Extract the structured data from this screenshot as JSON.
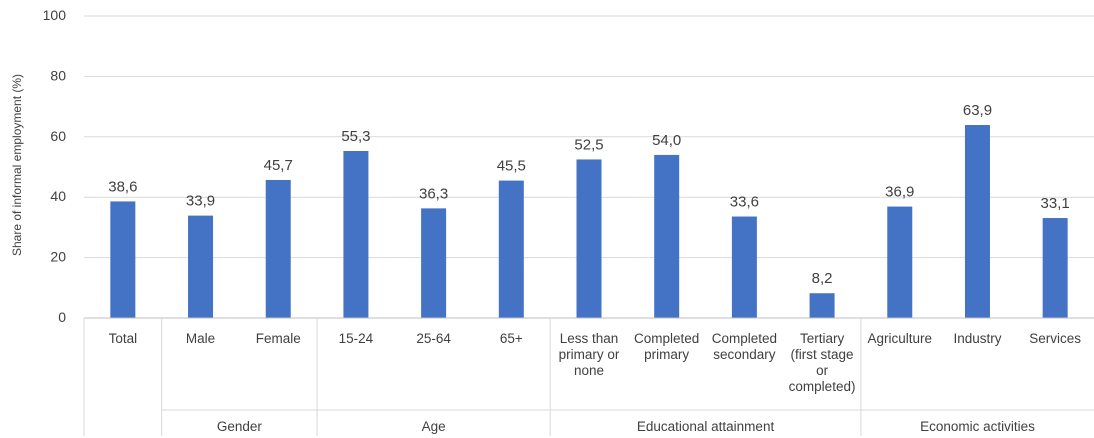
{
  "chart_data": {
    "type": "bar",
    "title": "",
    "ylabel": "Share of informal employment (%)",
    "ylim": [
      0,
      100
    ],
    "yticks": [
      0,
      20,
      40,
      60,
      80,
      100
    ],
    "grid": true,
    "bar_color": "#4472C4",
    "categories": [
      {
        "label": [
          "Total"
        ],
        "value": 38.6,
        "value_label": "38,6",
        "group": ""
      },
      {
        "label": [
          "Male"
        ],
        "value": 33.9,
        "value_label": "33,9",
        "group": "Gender"
      },
      {
        "label": [
          "Female"
        ],
        "value": 45.7,
        "value_label": "45,7",
        "group": "Gender"
      },
      {
        "label": [
          "15-24"
        ],
        "value": 55.3,
        "value_label": "55,3",
        "group": "Age"
      },
      {
        "label": [
          "25-64"
        ],
        "value": 36.3,
        "value_label": "36,3",
        "group": "Age"
      },
      {
        "label": [
          "65+"
        ],
        "value": 45.5,
        "value_label": "45,5",
        "group": "Age"
      },
      {
        "label": [
          "Less than",
          "primary or",
          "none"
        ],
        "value": 52.5,
        "value_label": "52,5",
        "group": "Educational attainment"
      },
      {
        "label": [
          "Completed",
          "primary"
        ],
        "value": 54.0,
        "value_label": "54,0",
        "group": "Educational attainment"
      },
      {
        "label": [
          "Completed",
          "secondary"
        ],
        "value": 33.6,
        "value_label": "33,6",
        "group": "Educational attainment"
      },
      {
        "label": [
          "Tertiary",
          "(first stage",
          "or",
          "completed)"
        ],
        "value": 8.2,
        "value_label": "8,2",
        "group": "Educational attainment"
      },
      {
        "label": [
          "Agriculture"
        ],
        "value": 36.9,
        "value_label": "36,9",
        "group": "Economic activities"
      },
      {
        "label": [
          "Industry"
        ],
        "value": 63.9,
        "value_label": "63,9",
        "group": "Economic activities"
      },
      {
        "label": [
          "Services"
        ],
        "value": 33.1,
        "value_label": "33,1",
        "group": "Economic activities"
      }
    ],
    "groups": [
      "Gender",
      "Age",
      "Educational attainment",
      "Economic activities"
    ]
  }
}
